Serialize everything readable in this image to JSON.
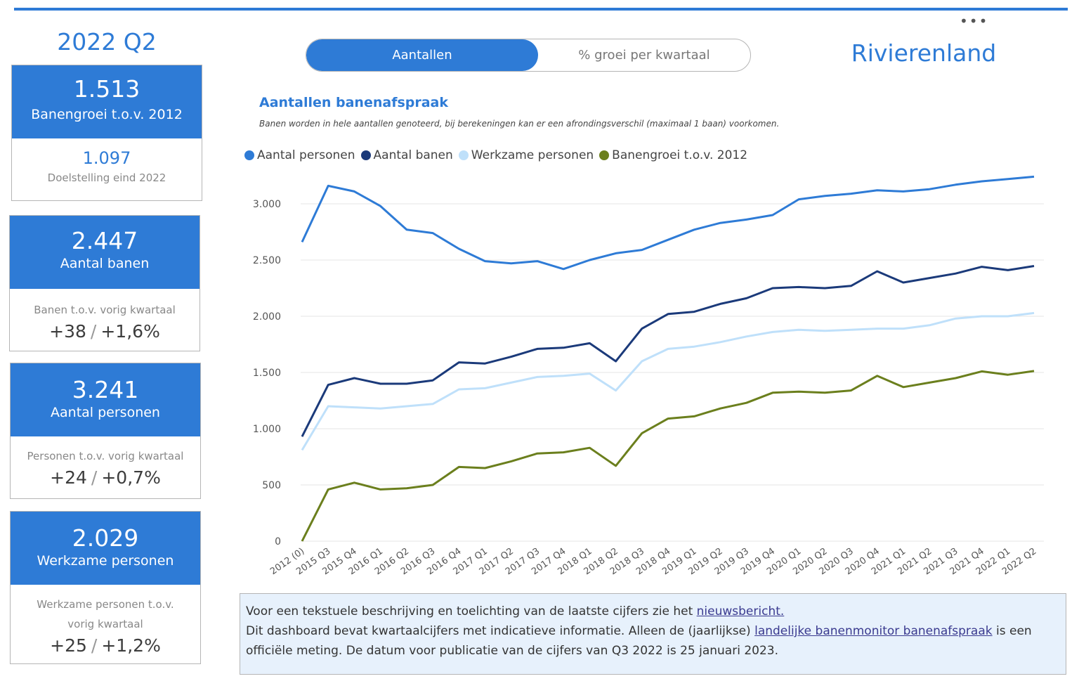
{
  "period": "2022 Q2",
  "region": "Rivierenland",
  "toggle": {
    "active": "Aantallen",
    "inactive": "% groei per kwartaal"
  },
  "kpis": {
    "banengroei": {
      "value": "1.513",
      "label": "Banengroei t.o.v. 2012",
      "target_value": "1.097",
      "target_label": "Doelstelling eind 2022"
    },
    "aantal_banen": {
      "value": "2.447",
      "label": "Aantal banen",
      "sub_label": "Banen t.o.v. vorig kwartaal",
      "delta_abs": "+38",
      "delta_pct": "+1,6%"
    },
    "aantal_personen": {
      "value": "3.241",
      "label": "Aantal personen",
      "sub_label": "Personen t.o.v. vorig kwartaal",
      "delta_abs": "+24",
      "delta_pct": "+0,7%"
    },
    "werkzame_personen": {
      "value": "2.029",
      "label": "Werkzame personen",
      "sub_label": "Werkzame personen t.o.v. vorig kwartaal",
      "delta_abs": "+25",
      "delta_pct": "+1,2%"
    }
  },
  "separator": "/",
  "info": {
    "line1_text": "Voor een tekstuele beschrijving en toelichting van de laatste cijfers zie het ",
    "line1_link": "nieuwsbericht.",
    "line2_text": "Dit dashboard bevat kwartaalcijfers met indicatieve informatie. Alleen de (jaarlijkse) ",
    "line2_link": "landelijke banenmonitor banenafspraak",
    "line2_rest": " is een officiële meting. De datum voor publicatie van de cijfers van Q3 2022 is 25 januari 2023."
  },
  "chart_data": {
    "type": "line",
    "title": "Aantallen banenafspraak",
    "subtitle": "Banen worden in hele aantallen genoteerd, bij berekeningen kan er een afrondingsverschil (maximaal 1 baan) voorkomen.",
    "xlabel": "",
    "ylabel": "",
    "ylim": [
      0,
      3250
    ],
    "yticks": [
      0,
      500,
      1000,
      1500,
      2000,
      2500,
      3000
    ],
    "ytick_labels": [
      "0",
      "500",
      "1.000",
      "1.500",
      "2.000",
      "2.500",
      "3.000"
    ],
    "grid": true,
    "legend_position": "top-left",
    "categories": [
      "2012 (0)",
      "2015 Q3",
      "2015 Q4",
      "2016 Q1",
      "2016 Q2",
      "2016 Q3",
      "2016 Q4",
      "2017 Q1",
      "2017 Q2",
      "2017 Q3",
      "2017 Q4",
      "2018 Q1",
      "2018 Q2",
      "2018 Q3",
      "2018 Q4",
      "2019 Q1",
      "2019 Q2",
      "2019 Q3",
      "2019 Q4",
      "2020 Q1",
      "2020 Q2",
      "2020 Q3",
      "2020 Q4",
      "2021 Q1",
      "2021 Q2",
      "2021 Q3",
      "2021 Q4",
      "2022 Q1",
      "2022 Q2"
    ],
    "series": [
      {
        "name": "Aantal personen",
        "color": "#2e7bd6",
        "values": [
          2660,
          3160,
          3110,
          2980,
          2770,
          2740,
          2600,
          2490,
          2470,
          2490,
          2420,
          2500,
          2560,
          2590,
          2680,
          2770,
          2830,
          2860,
          2900,
          3040,
          3070,
          3090,
          3120,
          3110,
          3130,
          3170,
          3200,
          3220,
          3241
        ]
      },
      {
        "name": "Aantal banen",
        "color": "#1b3a7a",
        "values": [
          930,
          1390,
          1450,
          1400,
          1400,
          1430,
          1590,
          1580,
          1640,
          1710,
          1720,
          1760,
          1600,
          1890,
          2020,
          2040,
          2110,
          2160,
          2250,
          2260,
          2250,
          2270,
          2400,
          2300,
          2340,
          2380,
          2440,
          2410,
          2447
        ]
      },
      {
        "name": "Werkzame personen",
        "color": "#bfe0fa",
        "values": [
          810,
          1200,
          1190,
          1180,
          1200,
          1220,
          1350,
          1360,
          1410,
          1460,
          1470,
          1490,
          1340,
          1600,
          1710,
          1730,
          1770,
          1820,
          1860,
          1880,
          1870,
          1880,
          1890,
          1890,
          1920,
          1980,
          2000,
          2000,
          2029
        ]
      },
      {
        "name": "Banengroei t.o.v. 2012",
        "color": "#6b7f1d",
        "values": [
          0,
          460,
          520,
          460,
          470,
          500,
          660,
          650,
          710,
          780,
          790,
          830,
          670,
          960,
          1090,
          1110,
          1180,
          1230,
          1320,
          1330,
          1320,
          1340,
          1470,
          1370,
          1410,
          1450,
          1510,
          1480,
          1513
        ]
      }
    ]
  }
}
